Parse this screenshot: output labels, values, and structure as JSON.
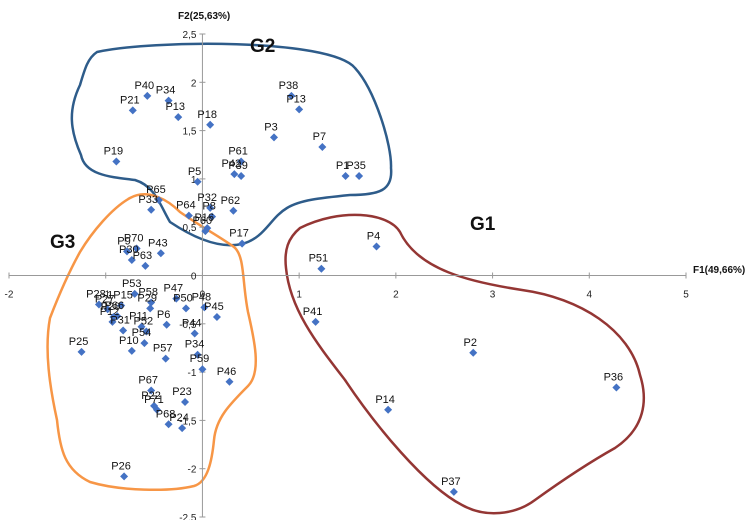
{
  "chart_data": {
    "type": "scatter",
    "title": "",
    "xlabel": "F1(49,66%)",
    "ylabel": "F2(25,63%)",
    "xlim": [
      -2,
      5
    ],
    "ylim": [
      -2.5,
      2.5
    ],
    "x_ticks": [
      "-2",
      "-1",
      "0",
      "1",
      "2",
      "3",
      "4",
      "5"
    ],
    "y_ticks": [
      "2,5",
      "2",
      "1,5",
      "1",
      "0,5",
      "0",
      "-0,5",
      "-1",
      "-1,5",
      "-2",
      "-2,5"
    ],
    "marker_color": "#4472C4",
    "points": [
      {
        "label": "P40",
        "x": -0.57,
        "y": 1.86
      },
      {
        "label": "P34",
        "x": -0.35,
        "y": 1.81
      },
      {
        "label": "P21",
        "x": -0.72,
        "y": 1.71
      },
      {
        "label": "P13",
        "x": -0.25,
        "y": 1.64
      },
      {
        "label": "P18",
        "x": 0.08,
        "y": 1.56
      },
      {
        "label": "P38",
        "x": 0.92,
        "y": 1.86
      },
      {
        "label": "P13",
        "x": 1.0,
        "y": 1.72
      },
      {
        "label": "P3",
        "x": 0.74,
        "y": 1.43
      },
      {
        "label": "P7",
        "x": 1.24,
        "y": 1.33
      },
      {
        "label": "P19",
        "x": -0.89,
        "y": 1.18
      },
      {
        "label": "P61",
        "x": 0.4,
        "y": 1.18
      },
      {
        "label": "P42",
        "x": 0.33,
        "y": 1.05
      },
      {
        "label": "P39",
        "x": 0.4,
        "y": 1.03
      },
      {
        "label": "P1",
        "x": 1.48,
        "y": 1.03
      },
      {
        "label": "P35",
        "x": 1.62,
        "y": 1.03
      },
      {
        "label": "P5",
        "x": -0.05,
        "y": 0.97
      },
      {
        "label": "P65",
        "x": -0.45,
        "y": 0.78
      },
      {
        "label": "P32",
        "x": 0.08,
        "y": 0.7
      },
      {
        "label": "P8",
        "x": 0.1,
        "y": 0.61
      },
      {
        "label": "P62",
        "x": 0.32,
        "y": 0.67
      },
      {
        "label": "P33",
        "x": -0.53,
        "y": 0.68
      },
      {
        "label": "P64",
        "x": -0.14,
        "y": 0.62
      },
      {
        "label": "P16",
        "x": 0.05,
        "y": 0.49
      },
      {
        "label": "P60",
        "x": 0.03,
        "y": 0.46
      },
      {
        "label": "P17",
        "x": 0.41,
        "y": 0.33
      },
      {
        "label": "P70",
        "x": -0.68,
        "y": 0.28
      },
      {
        "label": "P9",
        "x": -0.78,
        "y": 0.25
      },
      {
        "label": "P43",
        "x": -0.43,
        "y": 0.23
      },
      {
        "label": "P30",
        "x": -0.73,
        "y": 0.16
      },
      {
        "label": "P63",
        "x": -0.59,
        "y": 0.1
      },
      {
        "label": "P4",
        "x": 1.8,
        "y": 0.3
      },
      {
        "label": "P51",
        "x": 1.23,
        "y": 0.07
      },
      {
        "label": "P53",
        "x": -0.7,
        "y": -0.19
      },
      {
        "label": "P47",
        "x": -0.27,
        "y": -0.24
      },
      {
        "label": "P58",
        "x": -0.53,
        "y": -0.28
      },
      {
        "label": "P28",
        "x": -1.07,
        "y": -0.3
      },
      {
        "label": "-1P15",
        "x": -0.84,
        "y": -0.31
      },
      {
        "label": "P27",
        "x": -0.98,
        "y": -0.35
      },
      {
        "label": "P66",
        "x": -0.88,
        "y": -0.42
      },
      {
        "label": "P29",
        "x": -0.54,
        "y": -0.34
      },
      {
        "label": "P50",
        "x": -0.17,
        "y": -0.34
      },
      {
        "label": "P48",
        "x": 0.02,
        "y": -0.33
      },
      {
        "label": "P12",
        "x": -0.93,
        "y": -0.48
      },
      {
        "label": "P20",
        "x": -0.92,
        "y": -0.43
      },
      {
        "label": "P45",
        "x": 0.15,
        "y": -0.43
      },
      {
        "label": "P11",
        "x": -0.63,
        "y": -0.53
      },
      {
        "label": "P6",
        "x": -0.37,
        "y": -0.51
      },
      {
        "label": "P31",
        "x": -0.82,
        "y": -0.57
      },
      {
        "label": "P52",
        "x": -0.58,
        "y": -0.58
      },
      {
        "label": "P44",
        "x": -0.08,
        "y": -0.6
      },
      {
        "label": "P54",
        "x": -0.6,
        "y": -0.7
      },
      {
        "label": "P41",
        "x": 1.17,
        "y": -0.48
      },
      {
        "label": "P25",
        "x": -1.25,
        "y": -0.79
      },
      {
        "label": "P10",
        "x": -0.73,
        "y": -0.78
      },
      {
        "label": "P57",
        "x": -0.38,
        "y": -0.86
      },
      {
        "label": "P34",
        "x": -0.05,
        "y": -0.82
      },
      {
        "label": "P59",
        "x": 0.0,
        "y": -0.97
      },
      {
        "label": "P46",
        "x": 0.28,
        "y": -1.1
      },
      {
        "label": "P2",
        "x": 2.8,
        "y": -0.8
      },
      {
        "label": "P67",
        "x": -0.53,
        "y": -1.19
      },
      {
        "label": "P23",
        "x": -0.18,
        "y": -1.31
      },
      {
        "label": "P22",
        "x": -0.5,
        "y": -1.35
      },
      {
        "label": "P71",
        "x": -0.47,
        "y": -1.39
      },
      {
        "label": "P68",
        "x": -0.35,
        "y": -1.54
      },
      {
        "label": "P24",
        "x": -0.21,
        "y": -1.58
      },
      {
        "label": "P36",
        "x": 4.28,
        "y": -1.16
      },
      {
        "label": "P14",
        "x": 1.92,
        "y": -1.39
      },
      {
        "label": "P26",
        "x": -0.81,
        "y": -2.08
      },
      {
        "label": "P37",
        "x": 2.6,
        "y": -2.24
      }
    ],
    "groups": [
      {
        "name": "G1",
        "color": "#943634"
      },
      {
        "name": "G2",
        "color": "#2E5C8A"
      },
      {
        "name": "G3",
        "color": "#F79646"
      }
    ]
  }
}
